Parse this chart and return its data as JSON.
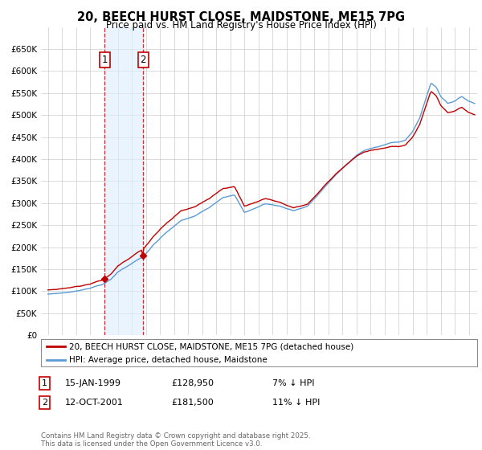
{
  "title": "20, BEECH HURST CLOSE, MAIDSTONE, ME15 7PG",
  "subtitle": "Price paid vs. HM Land Registry's House Price Index (HPI)",
  "ylim": [
    0,
    700000
  ],
  "yticks": [
    0,
    50000,
    100000,
    150000,
    200000,
    250000,
    300000,
    350000,
    400000,
    450000,
    500000,
    550000,
    600000,
    650000
  ],
  "ytick_labels": [
    "£0",
    "£50K",
    "£100K",
    "£150K",
    "£200K",
    "£250K",
    "£300K",
    "£350K",
    "£400K",
    "£450K",
    "£500K",
    "£550K",
    "£600K",
    "£650K"
  ],
  "hpi_color": "#5b9bd5",
  "price_color": "#c00000",
  "purchase1_date": 1999.04,
  "purchase1_price": 128950,
  "purchase2_date": 2001.79,
  "purchase2_price": 181500,
  "legend_property": "20, BEECH HURST CLOSE, MAIDSTONE, ME15 7PG (detached house)",
  "legend_hpi": "HPI: Average price, detached house, Maidstone",
  "table_rows": [
    {
      "num": "1",
      "date": "15-JAN-1999",
      "price": "£128,950",
      "hpi": "7% ↓ HPI"
    },
    {
      "num": "2",
      "date": "12-OCT-2001",
      "price": "£181,500",
      "hpi": "11% ↓ HPI"
    }
  ],
  "footnote": "Contains HM Land Registry data © Crown copyright and database right 2025.\nThis data is licensed under the Open Government Licence v3.0.",
  "bg_color": "#ffffff",
  "grid_color": "#cccccc",
  "shade_color": "#ddeeff"
}
